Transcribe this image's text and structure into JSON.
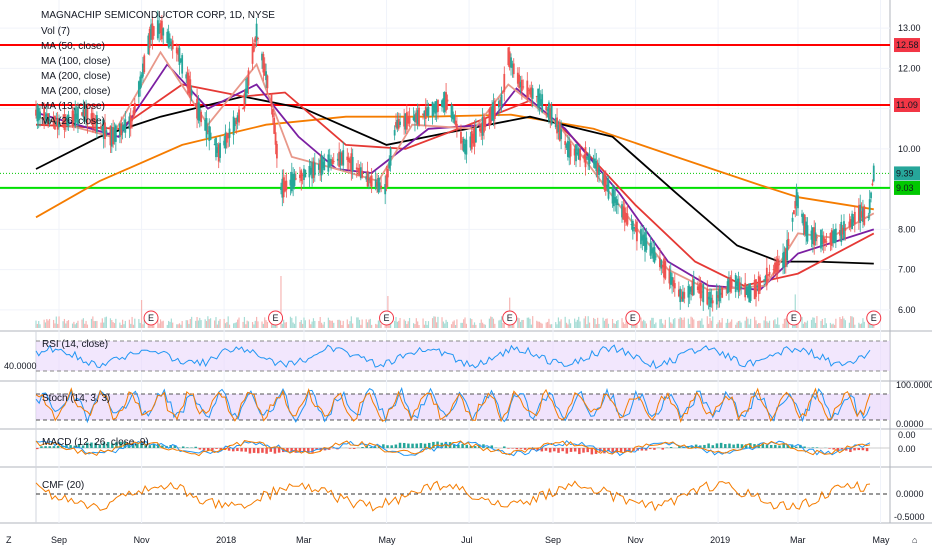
{
  "chart_data": {
    "type": "candlestick",
    "title": "MAGNACHIP SEMICONDUCTOR CORP, 1D, NYSE",
    "price_indicators": [
      "Vol (7)",
      "MA (50, close)",
      "MA (100, close)",
      "MA (200, close)",
      "MA (200, close)",
      "MA (13, close)",
      "MA (26, close)"
    ],
    "x_ticks": [
      "Sep",
      "Nov",
      "2018",
      "Mar",
      "May",
      "Jul",
      "Sep",
      "Nov",
      "2019",
      "Mar",
      "May"
    ],
    "price_axis": {
      "ticks": [
        "13.00",
        "12.00",
        "11.00",
        "10.00",
        "9.00",
        "8.00",
        "7.00",
        "6.00"
      ],
      "ylim": [
        5.5,
        13.5
      ]
    },
    "price_markers": [
      {
        "label": "12.58",
        "value": 12.58,
        "color": "#f23645"
      },
      {
        "label": "11.09",
        "value": 11.09,
        "color": "#f23645"
      },
      {
        "label": "9.39",
        "value": 9.39,
        "color": "#26a69a"
      },
      {
        "label": "9.03",
        "value": 9.03,
        "color": "#00c800"
      }
    ],
    "horizontal_lines": [
      {
        "value": 12.58,
        "color": "#ff0000"
      },
      {
        "value": 11.09,
        "color": "#ff0000"
      },
      {
        "value": 9.03,
        "color": "#00e000"
      },
      {
        "value": 9.39,
        "color": "#00c800",
        "style": "dotted"
      }
    ],
    "close_path": [
      [
        "2017-08-15",
        10.9
      ],
      [
        "2017-09-01",
        10.6
      ],
      [
        "2017-09-20",
        10.9
      ],
      [
        "2017-10-10",
        10.3
      ],
      [
        "2017-10-25",
        10.7
      ],
      [
        "2017-11-08",
        12.9
      ],
      [
        "2017-11-15",
        13.0
      ],
      [
        "2017-11-28",
        12.4
      ],
      [
        "2017-12-12",
        11.0
      ],
      [
        "2017-12-28",
        9.9
      ],
      [
        "2018-01-15",
        11.0
      ],
      [
        "2018-01-25",
        12.9
      ],
      [
        "2018-02-05",
        11.2
      ],
      [
        "2018-02-12",
        9.0
      ],
      [
        "2018-02-25",
        9.3
      ],
      [
        "2018-03-15",
        9.6
      ],
      [
        "2018-04-01",
        9.8
      ],
      [
        "2018-04-15",
        9.3
      ],
      [
        "2018-04-30",
        9.0
      ],
      [
        "2018-05-08",
        10.6
      ],
      [
        "2018-05-25",
        10.8
      ],
      [
        "2018-06-15",
        11.2
      ],
      [
        "2018-06-28",
        10.0
      ],
      [
        "2018-07-12",
        10.6
      ],
      [
        "2018-07-25",
        11.2
      ],
      [
        "2018-07-30",
        12.3
      ],
      [
        "2018-08-08",
        11.6
      ],
      [
        "2018-08-20",
        11.3
      ],
      [
        "2018-09-01",
        10.8
      ],
      [
        "2018-09-12",
        10.0
      ],
      [
        "2018-10-01",
        9.7
      ],
      [
        "2018-10-12",
        9.0
      ],
      [
        "2018-10-25",
        8.3
      ],
      [
        "2018-11-10",
        7.6
      ],
      [
        "2018-11-25",
        6.9
      ],
      [
        "2018-12-05",
        6.3
      ],
      [
        "2018-12-15",
        6.6
      ],
      [
        "2018-12-28",
        6.2
      ],
      [
        "2019-01-12",
        6.7
      ],
      [
        "2019-01-25",
        6.4
      ],
      [
        "2019-02-08",
        6.9
      ],
      [
        "2019-02-20",
        7.3
      ],
      [
        "2019-02-28",
        8.8
      ],
      [
        "2019-03-08",
        7.9
      ],
      [
        "2019-03-22",
        7.7
      ],
      [
        "2019-04-05",
        8.0
      ],
      [
        "2019-04-15",
        8.4
      ],
      [
        "2019-04-22",
        8.3
      ],
      [
        "2019-04-26",
        9.39
      ]
    ],
    "ma_lines": [
      {
        "name": "MA (200, close)",
        "color": "#f57c00",
        "values": [
          [
            "2017-08-15",
            8.3
          ],
          [
            "2017-10-01",
            9.2
          ],
          [
            "2017-12-01",
            10.1
          ],
          [
            "2018-02-01",
            10.6
          ],
          [
            "2018-04-01",
            10.8
          ],
          [
            "2018-06-01",
            10.8
          ],
          [
            "2018-08-01",
            10.85
          ],
          [
            "2018-10-01",
            10.5
          ],
          [
            "2018-12-01",
            9.8
          ],
          [
            "2019-02-01",
            9.1
          ],
          [
            "2019-03-01",
            8.8
          ],
          [
            "2019-04-26",
            8.5
          ]
        ]
      },
      {
        "name": "MA (100, close)",
        "color": "#000000",
        "values": [
          [
            "2017-08-15",
            9.5
          ],
          [
            "2017-10-01",
            10.3
          ],
          [
            "2017-11-15",
            10.8
          ],
          [
            "2018-01-15",
            11.3
          ],
          [
            "2018-03-01",
            11.0
          ],
          [
            "2018-05-01",
            10.1
          ],
          [
            "2018-06-15",
            10.4
          ],
          [
            "2018-08-15",
            10.8
          ],
          [
            "2018-10-15",
            10.3
          ],
          [
            "2018-12-01",
            8.9
          ],
          [
            "2019-01-15",
            7.6
          ],
          [
            "2019-02-15",
            7.2
          ],
          [
            "2019-03-15",
            7.2
          ],
          [
            "2019-04-26",
            7.15
          ]
        ]
      },
      {
        "name": "MA (50, close)",
        "color": "#e53935",
        "values": [
          [
            "2017-08-15",
            10.6
          ],
          [
            "2017-10-15",
            10.5
          ],
          [
            "2017-12-01",
            11.6
          ],
          [
            "2018-01-15",
            11.3
          ],
          [
            "2018-02-15",
            11.4
          ],
          [
            "2018-04-01",
            10.1
          ],
          [
            "2018-05-15",
            10.0
          ],
          [
            "2018-07-01",
            10.6
          ],
          [
            "2018-08-15",
            11.2
          ],
          [
            "2018-09-15",
            10.3
          ],
          [
            "2018-11-01",
            8.6
          ],
          [
            "2018-12-15",
            7.2
          ],
          [
            "2019-01-20",
            6.6
          ],
          [
            "2019-03-01",
            6.9
          ],
          [
            "2019-04-26",
            7.9
          ]
        ]
      },
      {
        "name": "MA (26, close)",
        "color": "#7b1fa2",
        "values": [
          [
            "2017-08-15",
            10.9
          ],
          [
            "2017-10-15",
            10.3
          ],
          [
            "2017-11-20",
            12.1
          ],
          [
            "2017-12-20",
            11.0
          ],
          [
            "2018-01-25",
            11.6
          ],
          [
            "2018-02-25",
            10.3
          ],
          [
            "2018-03-25",
            9.5
          ],
          [
            "2018-04-20",
            9.4
          ],
          [
            "2018-06-01",
            10.5
          ],
          [
            "2018-07-15",
            10.6
          ],
          [
            "2018-08-05",
            11.5
          ],
          [
            "2018-09-10",
            10.5
          ],
          [
            "2018-10-20",
            8.9
          ],
          [
            "2018-11-25",
            7.2
          ],
          [
            "2018-12-25",
            6.6
          ],
          [
            "2019-02-01",
            6.5
          ],
          [
            "2019-03-01",
            7.4
          ],
          [
            "2019-04-26",
            8.0
          ]
        ]
      },
      {
        "name": "MA (13, close)",
        "color": "#e8988a",
        "values": [
          [
            "2017-08-15",
            10.8
          ],
          [
            "2017-10-10",
            10.3
          ],
          [
            "2017-11-15",
            12.4
          ],
          [
            "2017-12-20",
            10.6
          ],
          [
            "2018-01-25",
            12.1
          ],
          [
            "2018-02-20",
            9.8
          ],
          [
            "2018-03-25",
            9.5
          ],
          [
            "2018-04-25",
            9.2
          ],
          [
            "2018-05-20",
            10.6
          ],
          [
            "2018-07-05",
            10.5
          ],
          [
            "2018-07-30",
            11.6
          ],
          [
            "2018-09-05",
            10.6
          ],
          [
            "2018-10-20",
            8.6
          ],
          [
            "2018-11-25",
            7.0
          ],
          [
            "2018-12-25",
            6.5
          ],
          [
            "2019-02-05",
            6.6
          ],
          [
            "2019-03-01",
            7.9
          ],
          [
            "2019-03-25",
            7.8
          ],
          [
            "2019-04-26",
            8.4
          ]
        ]
      }
    ],
    "earnings_markers": [
      "2017-11-08",
      "2018-02-08",
      "2018-05-01",
      "2018-07-31",
      "2018-10-30",
      "2019-02-26",
      "2019-04-26"
    ],
    "earnings_label": "E",
    "volume_spikes": [
      [
        "2017-11-01",
        0.35
      ],
      [
        "2018-02-10",
        1.0
      ],
      [
        "2018-02-12",
        0.65
      ],
      [
        "2018-05-02",
        0.4
      ],
      [
        "2018-07-31",
        0.38
      ],
      [
        "2019-02-27",
        0.42
      ]
    ],
    "panels": [
      {
        "name": "RSI (14, close)",
        "axis_ticks": [
          "40.0000"
        ],
        "bands": [
          30,
          70
        ]
      },
      {
        "name": "Stoch (14, 3, 3)",
        "axis_ticks": [
          "100.0000",
          "0.0000"
        ],
        "bands": [
          20,
          80
        ]
      },
      {
        "name": "MACD (12, 26, close, 9)",
        "axis_ticks": [
          "0.00",
          "0.00"
        ]
      },
      {
        "name": "CMF (20)",
        "axis_ticks": [
          "0.0000",
          "-0.5000"
        ]
      }
    ],
    "colors": {
      "up": "#26a69a",
      "down": "#ef5350",
      "panel_fill": "#e9d7fb",
      "cmf": "#f57c00"
    }
  },
  "footer": {
    "left": "Z",
    "right": "⌂"
  }
}
